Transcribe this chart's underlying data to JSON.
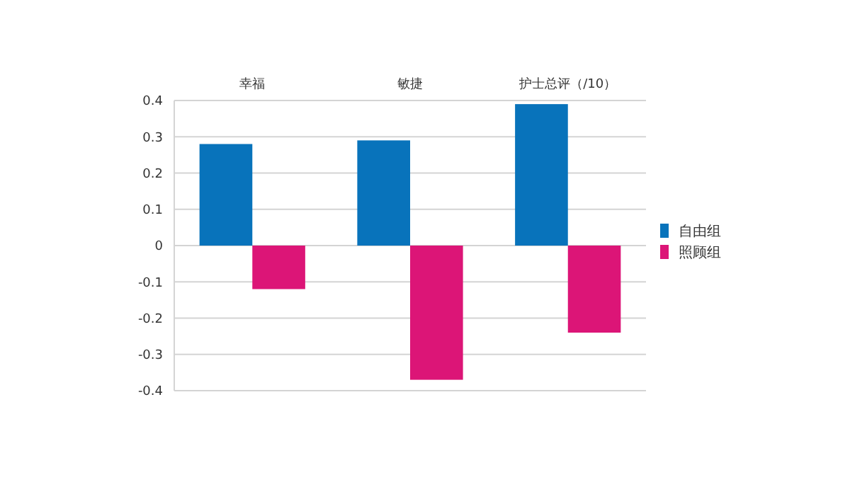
{
  "chart_data": {
    "type": "bar",
    "categories": [
      "幸福",
      "敏捷",
      "护士总评（/10）"
    ],
    "series": [
      {
        "name": "自由组",
        "color": "#0873bb",
        "values": [
          0.28,
          0.29,
          0.39
        ]
      },
      {
        "name": "照顾组",
        "color": "#dc1577",
        "values": [
          -0.12,
          -0.37,
          -0.24
        ]
      }
    ],
    "ylim": [
      -0.4,
      0.4
    ],
    "yticks": [
      {
        "value": -0.4,
        "label": "-0.4"
      },
      {
        "value": -0.3,
        "label": "-0.3"
      },
      {
        "value": -0.2,
        "label": "-0.2"
      },
      {
        "value": -0.1,
        "label": "-0.1"
      },
      0,
      {
        "value": 0.1,
        "label": "0.1"
      },
      {
        "value": 0.2,
        "label": "0.2"
      },
      {
        "value": 0.3,
        "label": "0.3"
      },
      {
        "value": 0.4,
        "label": "0.4"
      }
    ],
    "grid": "y",
    "legend": "right"
  }
}
